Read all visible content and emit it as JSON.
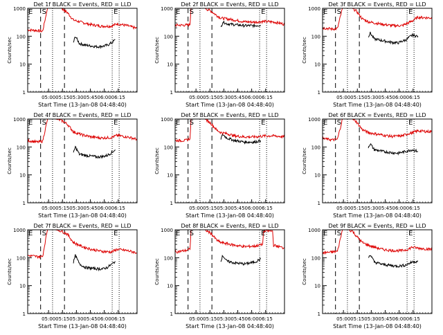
{
  "start_time_label": "Start Time (13-Jan-08 04:48:40)",
  "ylabel": "Counts/sec",
  "colors": {
    "events": "#000000",
    "lld": "#dd0000"
  },
  "x_ticks": [
    "05:00",
    "05:15",
    "05:30",
    "05:45",
    "06:00",
    "06:15"
  ],
  "y_ticks": [
    "1",
    "10",
    "100",
    "1000"
  ],
  "markers": {
    "e_left": "E",
    "s": "S",
    "e_right": "E"
  },
  "chart_data": [
    {
      "type": "line",
      "title": "Det 1f BLACK = Events, RED = LLD",
      "ylim": [
        1,
        1000
      ],
      "yscale": "log",
      "series": [
        {
          "name": "RED = LLD",
          "x": [
            0,
            10,
            15,
            19,
            20,
            22,
            28,
            34,
            40,
            46,
            55,
            64,
            74,
            84,
            90,
            100,
            110
          ],
          "y": [
            170,
            160,
            150,
            700,
            1000,
            1000,
            1000,
            1000,
            700,
            380,
            310,
            260,
            230,
            230,
            280,
            240,
            190
          ]
        },
        {
          "name": "BLACK = Events",
          "x": [
            46,
            48,
            52,
            58,
            64,
            70,
            76,
            80,
            85,
            88
          ],
          "y": [
            60,
            100,
            55,
            48,
            45,
            42,
            44,
            48,
            60,
            75
          ]
        }
      ]
    },
    {
      "type": "line",
      "title": "Det 2f BLACK = Events, RED = LLD",
      "ylim": [
        1,
        1000
      ],
      "yscale": "log",
      "series": [
        {
          "name": "RED = LLD",
          "x": [
            0,
            10,
            15,
            16,
            20,
            24,
            30,
            36,
            42,
            46,
            52,
            60,
            70,
            80,
            90,
            100,
            110
          ],
          "y": [
            250,
            250,
            260,
            1000,
            1000,
            1000,
            1000,
            800,
            550,
            450,
            420,
            380,
            330,
            320,
            340,
            320,
            270
          ]
        },
        {
          "name": "BLACK = Events",
          "x": [
            46,
            48,
            52,
            60,
            70,
            80,
            86
          ],
          "y": [
            200,
            330,
            280,
            260,
            240,
            240,
            250
          ]
        }
      ]
    },
    {
      "type": "line",
      "title": "Det 3f BLACK = Events, RED = LLD",
      "ylim": [
        1,
        1000
      ],
      "yscale": "log",
      "series": [
        {
          "name": "RED = LLD",
          "x": [
            0,
            10,
            15,
            20,
            22,
            26,
            30,
            34,
            40,
            46,
            52,
            60,
            70,
            80,
            86,
            90,
            96,
            110
          ],
          "y": [
            200,
            180,
            190,
            1000,
            1000,
            1000,
            1000,
            800,
            420,
            330,
            300,
            270,
            240,
            240,
            300,
            350,
            480,
            450
          ]
        },
        {
          "name": "BLACK = Events",
          "x": [
            46,
            48,
            52,
            60,
            70,
            76,
            84,
            90,
            96
          ],
          "y": [
            100,
            130,
            80,
            70,
            60,
            58,
            75,
            110,
            100
          ]
        }
      ]
    },
    {
      "type": "line",
      "title": "Det 4f BLACK = Events, RED = LLD",
      "ylim": [
        1,
        1000
      ],
      "yscale": "log",
      "series": [
        {
          "name": "RED = LLD",
          "x": [
            0,
            10,
            15,
            20,
            22,
            28,
            34,
            40,
            46,
            55,
            64,
            74,
            84,
            90,
            100,
            110
          ],
          "y": [
            170,
            150,
            160,
            1000,
            1000,
            1000,
            900,
            650,
            350,
            270,
            230,
            210,
            220,
            260,
            230,
            190
          ]
        },
        {
          "name": "BLACK = Events",
          "x": [
            46,
            48,
            52,
            58,
            64,
            70,
            76,
            80,
            85,
            88
          ],
          "y": [
            60,
            100,
            55,
            50,
            47,
            44,
            46,
            50,
            65,
            80
          ]
        }
      ]
    },
    {
      "type": "line",
      "title": "Det 5f BLACK = Events, RED = LLD",
      "ylim": [
        1,
        1000
      ],
      "yscale": "log",
      "series": [
        {
          "name": "RED = LLD",
          "x": [
            0,
            10,
            15,
            16,
            20,
            24,
            30,
            36,
            42,
            46,
            52,
            60,
            70,
            80,
            90,
            100,
            110
          ],
          "y": [
            170,
            170,
            200,
            1000,
            1000,
            1000,
            1000,
            700,
            400,
            330,
            300,
            250,
            230,
            230,
            250,
            250,
            230
          ]
        },
        {
          "name": "BLACK = Events",
          "x": [
            46,
            48,
            52,
            60,
            70,
            80,
            86
          ],
          "y": [
            200,
            280,
            210,
            170,
            150,
            150,
            170
          ]
        }
      ]
    },
    {
      "type": "line",
      "title": "Det 6f BLACK = Events, RED = LLD",
      "ylim": [
        1,
        1000
      ],
      "yscale": "log",
      "series": [
        {
          "name": "RED = LLD",
          "x": [
            0,
            10,
            15,
            20,
            22,
            26,
            30,
            34,
            40,
            46,
            52,
            60,
            70,
            80,
            86,
            90,
            96,
            110
          ],
          "y": [
            200,
            180,
            190,
            1000,
            1000,
            1000,
            1000,
            800,
            420,
            330,
            300,
            270,
            240,
            250,
            300,
            320,
            380,
            350
          ]
        },
        {
          "name": "BLACK = Events",
          "x": [
            46,
            48,
            52,
            60,
            70,
            76,
            84,
            90,
            96
          ],
          "y": [
            100,
            130,
            80,
            70,
            62,
            60,
            70,
            80,
            70
          ]
        }
      ]
    },
    {
      "type": "line",
      "title": "Det 7f BLACK = Events, RED = LLD",
      "ylim": [
        1,
        1000
      ],
      "yscale": "log",
      "series": [
        {
          "name": "RED = LLD",
          "x": [
            0,
            10,
            15,
            19,
            20,
            22,
            28,
            34,
            40,
            46,
            55,
            64,
            74,
            84,
            90,
            100,
            110
          ],
          "y": [
            120,
            110,
            110,
            700,
            1000,
            1000,
            1000,
            900,
            700,
            350,
            250,
            200,
            170,
            160,
            200,
            180,
            150
          ]
        },
        {
          "name": "BLACK = Events",
          "x": [
            46,
            48,
            52,
            58,
            64,
            70,
            76,
            80,
            85,
            88
          ],
          "y": [
            70,
            120,
            60,
            45,
            42,
            40,
            40,
            45,
            60,
            75
          ]
        }
      ]
    },
    {
      "type": "line",
      "title": "Det 8f BLACK = Events, RED = LLD",
      "ylim": [
        1,
        1000
      ],
      "yscale": "log",
      "series": [
        {
          "name": "RED = LLD",
          "x": [
            0,
            10,
            15,
            16,
            20,
            24,
            30,
            36,
            42,
            46,
            52,
            60,
            70,
            80,
            88,
            89,
            98,
            99,
            110
          ],
          "y": [
            160,
            180,
            200,
            1000,
            1000,
            1000,
            1000,
            750,
            420,
            350,
            320,
            280,
            250,
            260,
            300,
            900,
            900,
            280,
            220
          ]
        },
        {
          "name": "BLACK = Events",
          "x": [
            46,
            48,
            52,
            60,
            70,
            80,
            86
          ],
          "y": [
            80,
            120,
            75,
            65,
            60,
            70,
            90
          ]
        }
      ]
    },
    {
      "type": "line",
      "title": "Det 9f BLACK = Events, RED = LLD",
      "ylim": [
        1,
        1000
      ],
      "yscale": "log",
      "series": [
        {
          "name": "RED = LLD",
          "x": [
            0,
            10,
            15,
            20,
            22,
            26,
            30,
            34,
            40,
            46,
            52,
            60,
            70,
            80,
            86,
            90,
            96,
            110
          ],
          "y": [
            150,
            160,
            170,
            1000,
            1000,
            1000,
            900,
            600,
            350,
            280,
            240,
            200,
            180,
            180,
            200,
            240,
            220,
            200
          ]
        },
        {
          "name": "BLACK = Events",
          "x": [
            46,
            48,
            52,
            60,
            70,
            76,
            84,
            90,
            96
          ],
          "y": [
            100,
            130,
            70,
            58,
            52,
            50,
            55,
            70,
            75
          ]
        }
      ]
    }
  ]
}
